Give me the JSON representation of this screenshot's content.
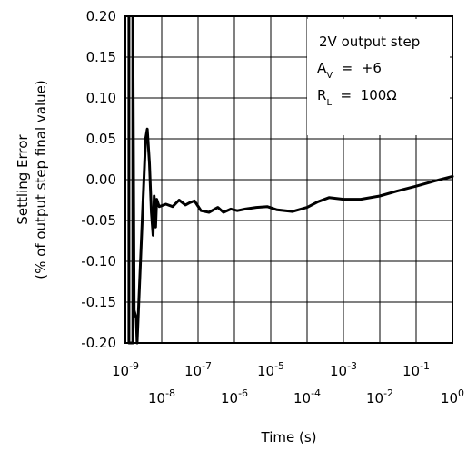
{
  "chart_data": {
    "type": "line",
    "title": "",
    "xlabel": "Time (s)",
    "ylabel": "Settling Error",
    "ylabel_sub": "(% of output step final value)",
    "x_scale": "log",
    "xlim": [
      1e-09,
      1
    ],
    "ylim": [
      -0.2,
      0.2
    ],
    "grid": true,
    "x_ticks": [
      {
        "value": 1e-09,
        "base": "10",
        "exp": "-9",
        "row": 0
      },
      {
        "value": 1e-08,
        "base": "10",
        "exp": "-8",
        "row": 1
      },
      {
        "value": 1e-07,
        "base": "10",
        "exp": "-7",
        "row": 0
      },
      {
        "value": 1e-06,
        "base": "10",
        "exp": "-6",
        "row": 1
      },
      {
        "value": 1e-05,
        "base": "10",
        "exp": "-5",
        "row": 0
      },
      {
        "value": 0.0001,
        "base": "10",
        "exp": "-4",
        "row": 1
      },
      {
        "value": 0.001,
        "base": "10",
        "exp": "-3",
        "row": 0
      },
      {
        "value": 0.01,
        "base": "10",
        "exp": "-2",
        "row": 1
      },
      {
        "value": 0.1,
        "base": "10",
        "exp": "-1",
        "row": 0
      },
      {
        "value": 1,
        "base": "10",
        "exp": "0",
        "row": 1
      }
    ],
    "y_ticks": [
      "0.20",
      "0.15",
      "0.10",
      "0.05",
      "0.00",
      "-0.05",
      "-0.10",
      "-0.15",
      "-0.20"
    ],
    "y_tick_values": [
      0.2,
      0.15,
      0.1,
      0.05,
      0.0,
      -0.05,
      -0.1,
      -0.15,
      -0.2
    ],
    "annotations": [
      {
        "text": "2V output step"
      },
      {
        "main": "A",
        "sub": "V",
        "rest": "  =  +6"
      },
      {
        "main": "R",
        "sub": "L",
        "rest": "  =  100Ω"
      }
    ],
    "series": [
      {
        "points": [
          [
            1.25e-09,
            0.2
          ],
          [
            1.25e-09,
            -0.2
          ],
          [
            1.6e-09,
            -0.2
          ],
          [
            1.6e-09,
            0.2
          ],
          [
            1.6e-09,
            0.2
          ],
          [
            1.75e-09,
            -0.16
          ],
          [
            2e-09,
            -0.17
          ],
          [
            2.1e-09,
            -0.2
          ],
          [
            3.6e-09,
            0.05
          ],
          [
            4e-09,
            0.062
          ],
          [
            4.6e-09,
            0.02
          ],
          [
            5.2e-09,
            -0.04
          ],
          [
            5.8e-09,
            -0.068
          ],
          [
            6.2e-09,
            -0.02
          ],
          [
            6.8e-09,
            -0.058
          ],
          [
            7.3e-09,
            -0.024
          ],
          [
            8.5e-09,
            -0.033
          ],
          [
            1.3e-08,
            -0.03
          ],
          [
            2e-08,
            -0.033
          ],
          [
            3e-08,
            -0.025
          ],
          [
            4.5e-08,
            -0.031
          ],
          [
            6e-08,
            -0.028
          ],
          [
            8e-08,
            -0.026
          ],
          [
            1.2e-07,
            -0.038
          ],
          [
            2e-07,
            -0.04
          ],
          [
            3.5e-07,
            -0.034
          ],
          [
            5e-07,
            -0.04
          ],
          [
            8e-07,
            -0.036
          ],
          [
            1.2e-06,
            -0.038
          ],
          [
            2e-06,
            -0.036
          ],
          [
            4e-06,
            -0.034
          ],
          [
            8e-06,
            -0.033
          ],
          [
            1.5e-05,
            -0.037
          ],
          [
            4e-05,
            -0.039
          ],
          [
            0.0001,
            -0.034
          ],
          [
            0.0002,
            -0.027
          ],
          [
            0.0004,
            -0.022
          ],
          [
            0.001,
            -0.024
          ],
          [
            0.003,
            -0.024
          ],
          [
            0.01,
            -0.02
          ],
          [
            0.03,
            -0.014
          ],
          [
            0.1,
            -0.008
          ],
          [
            0.3,
            -0.002
          ],
          [
            1.0,
            0.004
          ]
        ]
      }
    ]
  }
}
